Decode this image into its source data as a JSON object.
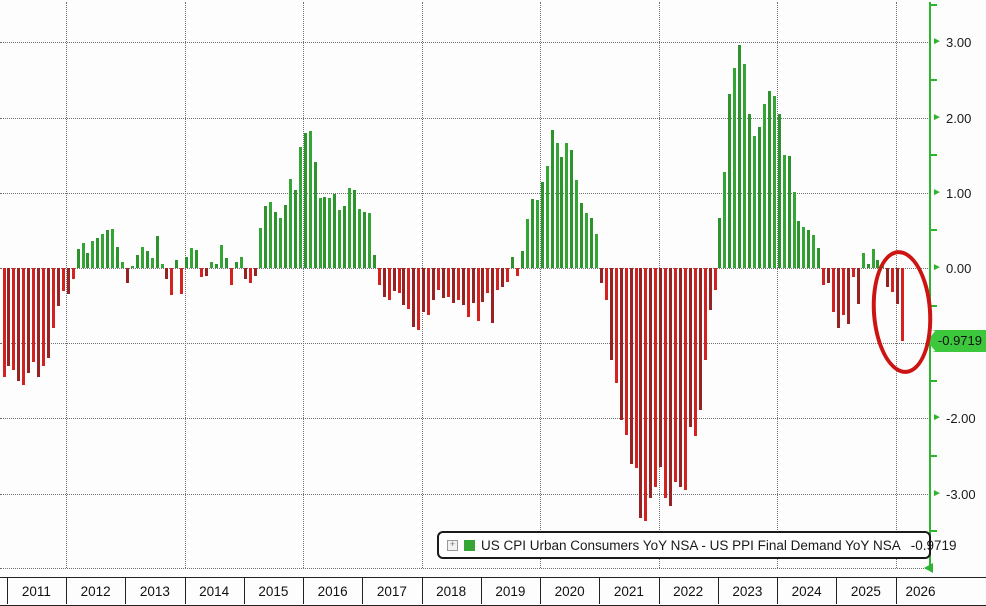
{
  "colors": {
    "bar_positive": "#35a535",
    "bar_positive_alt": "#2d942d",
    "bar_negative": "#d42221",
    "bar_negative_alt": "#952323",
    "axis_green": "#2eb42e",
    "badge_green": "#3dc73d",
    "annotation_red": "#cc1413",
    "grid_gray": "#707070",
    "text": "#1a1a1a"
  },
  "legend": {
    "expand_icon": "+",
    "swatch_color": "#35a535",
    "label": "US CPI Urban Consumers YoY NSA - US PPI Final Demand YoY NSA",
    "value": "-0.9719"
  },
  "badge": {
    "text": "-0.9719"
  },
  "chart_data": {
    "type": "bar",
    "title": "US CPI Urban Consumers YoY NSA - US PPI Final Demand YoY NSA",
    "latest_value": -0.9719,
    "frequency": "monthly",
    "x_start": "2010-12",
    "xlabel": "",
    "ylabel": "",
    "ylim": [
      -3.97,
      3.56
    ],
    "grid": true,
    "legend_position": "bottom",
    "y_ticks": [
      {
        "value": 3.0,
        "label": "3.00"
      },
      {
        "value": 2.0,
        "label": "2.00"
      },
      {
        "value": 1.0,
        "label": "1.00"
      },
      {
        "value": 0.0,
        "label": "0.00"
      },
      {
        "value": -2.0,
        "label": "-2.00"
      },
      {
        "value": -3.0,
        "label": "-3.00"
      }
    ],
    "y_gridline_values": [
      3,
      2,
      1,
      0,
      -1,
      -2,
      -3
    ],
    "y_minor_tick_values": [
      3.5,
      2.5,
      1.5,
      0.5,
      -0.5,
      -1.5,
      -2.5,
      -3.5
    ],
    "x_axis_years": [
      "2011",
      "2012",
      "2013",
      "2014",
      "2015",
      "2016",
      "2017",
      "2018",
      "2019",
      "2020",
      "2021",
      "2022",
      "2023",
      "2024",
      "2025",
      "2026"
    ],
    "values": [
      -1.45,
      -1.3,
      -1.35,
      -1.5,
      -1.55,
      -1.4,
      -1.25,
      -1.45,
      -1.3,
      -1.2,
      -0.8,
      -0.5,
      -0.3,
      -0.35,
      -0.15,
      0.25,
      0.33,
      0.2,
      0.36,
      0.4,
      0.45,
      0.5,
      0.52,
      0.28,
      0.08,
      -0.2,
      0.02,
      0.17,
      0.28,
      0.22,
      0.13,
      0.42,
      0.05,
      -0.15,
      -0.36,
      0.11,
      -0.35,
      0.15,
      0.26,
      0.24,
      -0.12,
      -0.1,
      0.08,
      0.05,
      0.31,
      0.13,
      -0.23,
      0.08,
      0.15,
      -0.15,
      -0.2,
      -0.1,
      0.53,
      0.82,
      0.88,
      0.75,
      0.66,
      0.84,
      1.19,
      1.04,
      1.61,
      1.79,
      1.82,
      1.41,
      0.93,
      0.95,
      0.93,
      0.99,
      0.77,
      0.82,
      1.06,
      1.04,
      0.79,
      0.75,
      0.73,
      0.17,
      -0.23,
      -0.38,
      -0.42,
      -0.31,
      -0.33,
      -0.49,
      -0.54,
      -0.78,
      -0.82,
      -0.58,
      -0.62,
      -0.42,
      -0.29,
      -0.4,
      -0.38,
      -0.47,
      -0.42,
      -0.49,
      -0.65,
      -0.47,
      -0.71,
      -0.45,
      -0.33,
      -0.73,
      -0.29,
      -0.25,
      -0.19,
      0.15,
      -0.1,
      0.22,
      0.65,
      0.92,
      0.9,
      1.15,
      1.35,
      1.84,
      1.66,
      1.48,
      1.66,
      1.57,
      1.17,
      0.86,
      0.73,
      0.66,
      0.45,
      -0.2,
      -0.43,
      -1.22,
      -1.53,
      -2.02,
      -2.22,
      -2.6,
      -2.66,
      -3.33,
      -3.37,
      -3.06,
      -2.91,
      -2.64,
      -3.06,
      -3.17,
      -2.84,
      -2.91,
      -2.95,
      -2.11,
      -2.24,
      -1.89,
      -1.22,
      -0.56,
      -0.29,
      0.66,
      1.28,
      2.32,
      2.66,
      2.97,
      2.71,
      2.05,
      1.75,
      1.87,
      2.18,
      2.36,
      2.29,
      2.05,
      1.5,
      1.49,
      1.01,
      0.62,
      0.55,
      0.5,
      0.44,
      0.26,
      -0.22,
      -0.2,
      -0.58,
      -0.8,
      -0.62,
      -0.75,
      -0.12,
      -0.48,
      0.2,
      0.05,
      0.25,
      0.1,
      0.02,
      -0.25,
      -0.32,
      -0.48,
      -0.9719
    ],
    "annotation": "red ellipse circling the latest bars ending at -0.9719"
  }
}
